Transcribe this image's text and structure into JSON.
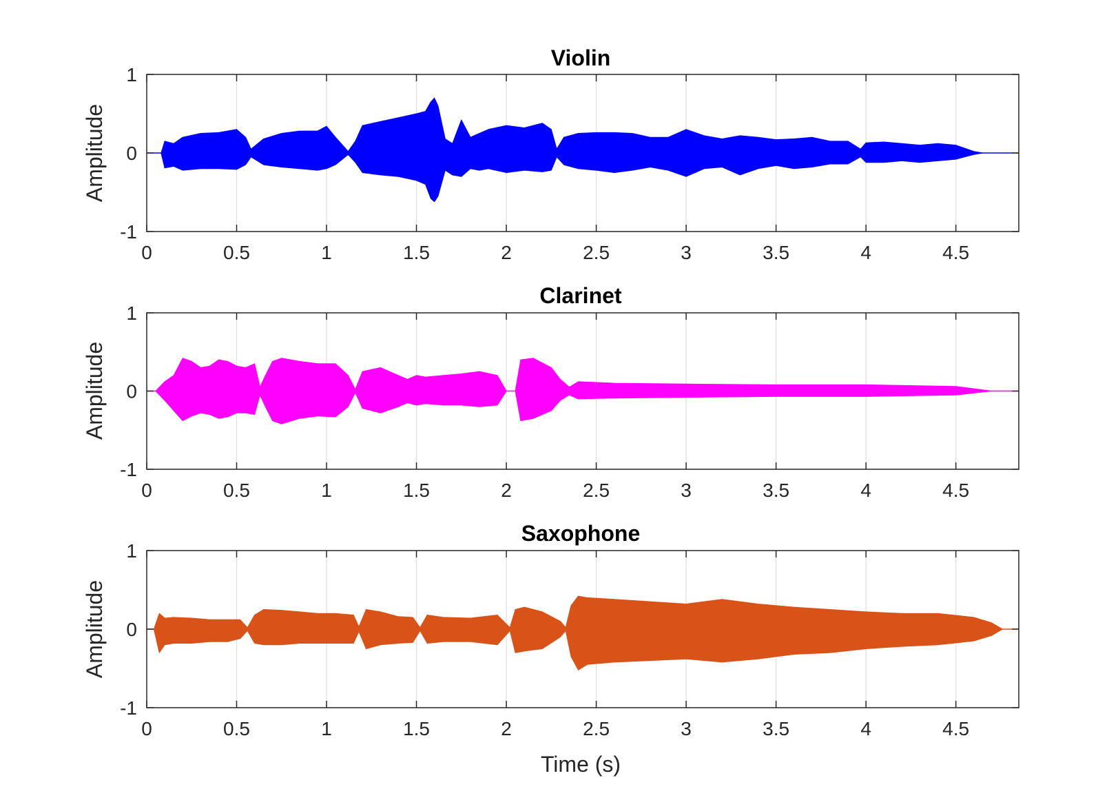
{
  "chart_data": [
    {
      "type": "line",
      "title": "Violin",
      "ylabel": "Amplitude",
      "xlabel": "",
      "color": "#0000ff",
      "xlim": [
        0,
        4.85
      ],
      "ylim": [
        -1,
        1
      ],
      "yticks": [
        "-1",
        "0",
        "1"
      ],
      "xticks": [
        "0",
        "0.5",
        "1",
        "1.5",
        "2",
        "2.5",
        "3",
        "3.5",
        "4",
        "4.5"
      ],
      "grid": "vertical",
      "envelope": {
        "x": [
          0.0,
          0.08,
          0.1,
          0.15,
          0.2,
          0.3,
          0.4,
          0.5,
          0.55,
          0.58,
          0.65,
          0.75,
          0.85,
          0.95,
          1.0,
          1.05,
          1.12,
          1.16,
          1.2,
          1.3,
          1.4,
          1.5,
          1.55,
          1.58,
          1.6,
          1.62,
          1.66,
          1.7,
          1.75,
          1.8,
          1.85,
          1.9,
          2.0,
          2.1,
          2.2,
          2.25,
          2.28,
          2.32,
          2.4,
          2.5,
          2.6,
          2.7,
          2.8,
          2.9,
          3.0,
          3.1,
          3.2,
          3.3,
          3.4,
          3.5,
          3.6,
          3.7,
          3.8,
          3.9,
          3.97,
          4.0,
          4.1,
          4.2,
          4.3,
          4.4,
          4.5,
          4.6,
          4.65,
          4.85
        ],
        "upper": [
          0.0,
          0.0,
          0.15,
          0.12,
          0.2,
          0.25,
          0.26,
          0.3,
          0.2,
          0.05,
          0.18,
          0.25,
          0.28,
          0.28,
          0.34,
          0.2,
          0.02,
          0.15,
          0.35,
          0.4,
          0.45,
          0.5,
          0.53,
          0.65,
          0.7,
          0.6,
          0.18,
          0.12,
          0.42,
          0.2,
          0.25,
          0.3,
          0.35,
          0.32,
          0.38,
          0.3,
          0.05,
          0.2,
          0.25,
          0.26,
          0.26,
          0.25,
          0.2,
          0.2,
          0.3,
          0.22,
          0.18,
          0.22,
          0.2,
          0.17,
          0.18,
          0.2,
          0.15,
          0.15,
          0.05,
          0.13,
          0.14,
          0.12,
          0.1,
          0.12,
          0.1,
          0.02,
          0.0,
          0.0
        ],
        "lower": [
          0.0,
          0.0,
          -0.19,
          -0.17,
          -0.22,
          -0.2,
          -0.2,
          -0.21,
          -0.15,
          -0.05,
          -0.15,
          -0.18,
          -0.2,
          -0.22,
          -0.2,
          -0.15,
          -0.02,
          -0.12,
          -0.25,
          -0.28,
          -0.3,
          -0.35,
          -0.4,
          -0.58,
          -0.62,
          -0.55,
          -0.22,
          -0.28,
          -0.3,
          -0.2,
          -0.22,
          -0.2,
          -0.25,
          -0.22,
          -0.24,
          -0.22,
          -0.05,
          -0.15,
          -0.2,
          -0.22,
          -0.25,
          -0.22,
          -0.18,
          -0.22,
          -0.3,
          -0.2,
          -0.18,
          -0.28,
          -0.2,
          -0.16,
          -0.2,
          -0.18,
          -0.14,
          -0.14,
          -0.05,
          -0.12,
          -0.12,
          -0.1,
          -0.12,
          -0.1,
          -0.08,
          -0.02,
          0.0,
          0.0
        ]
      }
    },
    {
      "type": "line",
      "title": "Clarinet",
      "ylabel": "Amplitude",
      "xlabel": "",
      "color": "#ff00ff",
      "xlim": [
        0,
        4.85
      ],
      "ylim": [
        -1,
        1
      ],
      "yticks": [
        "-1",
        "0",
        "1"
      ],
      "xticks": [
        "0",
        "0.5",
        "1",
        "1.5",
        "2",
        "2.5",
        "3",
        "3.5",
        "4",
        "4.5"
      ],
      "grid": "vertical",
      "envelope": {
        "x": [
          0.0,
          0.05,
          0.1,
          0.15,
          0.2,
          0.25,
          0.3,
          0.35,
          0.4,
          0.45,
          0.5,
          0.55,
          0.6,
          0.63,
          0.66,
          0.7,
          0.75,
          0.85,
          0.95,
          1.05,
          1.12,
          1.16,
          1.2,
          1.3,
          1.4,
          1.45,
          1.5,
          1.55,
          1.65,
          1.75,
          1.85,
          1.95,
          2.0,
          2.05,
          2.08,
          2.15,
          2.25,
          2.3,
          2.35,
          2.4,
          2.6,
          3.0,
          3.5,
          4.0,
          4.5,
          4.7,
          4.85
        ],
        "upper": [
          0.0,
          0.0,
          0.12,
          0.2,
          0.42,
          0.38,
          0.3,
          0.32,
          0.4,
          0.38,
          0.32,
          0.3,
          0.35,
          0.05,
          0.2,
          0.38,
          0.42,
          0.38,
          0.35,
          0.35,
          0.2,
          0.02,
          0.25,
          0.3,
          0.2,
          0.15,
          0.2,
          0.18,
          0.2,
          0.22,
          0.25,
          0.2,
          0.0,
          0.0,
          0.4,
          0.42,
          0.3,
          0.15,
          0.05,
          0.12,
          0.1,
          0.09,
          0.08,
          0.08,
          0.06,
          0.0,
          0.0
        ],
        "lower": [
          0.0,
          0.0,
          -0.12,
          -0.25,
          -0.38,
          -0.32,
          -0.28,
          -0.3,
          -0.35,
          -0.33,
          -0.28,
          -0.28,
          -0.3,
          -0.05,
          -0.2,
          -0.38,
          -0.42,
          -0.35,
          -0.32,
          -0.33,
          -0.2,
          -0.02,
          -0.22,
          -0.28,
          -0.2,
          -0.15,
          -0.18,
          -0.16,
          -0.18,
          -0.18,
          -0.2,
          -0.18,
          0.0,
          0.0,
          -0.38,
          -0.35,
          -0.25,
          -0.12,
          -0.05,
          -0.1,
          -0.09,
          -0.08,
          -0.07,
          -0.07,
          -0.05,
          0.0,
          0.0
        ]
      }
    },
    {
      "type": "line",
      "title": "Saxophone",
      "ylabel": "Amplitude",
      "xlabel": "Time (s)",
      "color": "#d95319",
      "xlim": [
        0,
        4.85
      ],
      "ylim": [
        -1,
        1
      ],
      "yticks": [
        "-1",
        "0",
        "1"
      ],
      "xticks": [
        "0",
        "0.5",
        "1",
        "1.5",
        "2",
        "2.5",
        "3",
        "3.5",
        "4",
        "4.5"
      ],
      "grid": "vertical",
      "envelope": {
        "x": [
          0.0,
          0.04,
          0.07,
          0.1,
          0.15,
          0.25,
          0.35,
          0.45,
          0.52,
          0.56,
          0.6,
          0.65,
          0.75,
          0.85,
          0.95,
          1.05,
          1.15,
          1.18,
          1.22,
          1.3,
          1.4,
          1.48,
          1.52,
          1.56,
          1.65,
          1.8,
          1.95,
          2.02,
          2.05,
          2.1,
          2.2,
          2.3,
          2.33,
          2.36,
          2.4,
          2.45,
          2.6,
          2.8,
          3.0,
          3.2,
          3.4,
          3.6,
          3.8,
          4.0,
          4.2,
          4.4,
          4.6,
          4.7,
          4.76,
          4.85
        ],
        "upper": [
          0.0,
          0.0,
          0.2,
          0.14,
          0.15,
          0.14,
          0.12,
          0.12,
          0.12,
          0.02,
          0.18,
          0.25,
          0.24,
          0.22,
          0.2,
          0.2,
          0.18,
          0.03,
          0.25,
          0.22,
          0.16,
          0.15,
          0.02,
          0.18,
          0.15,
          0.14,
          0.18,
          0.02,
          0.25,
          0.28,
          0.22,
          0.1,
          0.02,
          0.3,
          0.42,
          0.4,
          0.38,
          0.35,
          0.32,
          0.38,
          0.32,
          0.28,
          0.25,
          0.22,
          0.2,
          0.2,
          0.15,
          0.08,
          0.0,
          0.0
        ],
        "lower": [
          0.0,
          0.0,
          -0.3,
          -0.2,
          -0.18,
          -0.18,
          -0.16,
          -0.16,
          -0.12,
          -0.02,
          -0.18,
          -0.2,
          -0.2,
          -0.18,
          -0.18,
          -0.18,
          -0.18,
          -0.03,
          -0.25,
          -0.2,
          -0.18,
          -0.17,
          -0.02,
          -0.18,
          -0.16,
          -0.16,
          -0.2,
          -0.02,
          -0.3,
          -0.28,
          -0.25,
          -0.1,
          -0.02,
          -0.35,
          -0.52,
          -0.45,
          -0.42,
          -0.4,
          -0.38,
          -0.42,
          -0.38,
          -0.32,
          -0.3,
          -0.25,
          -0.22,
          -0.2,
          -0.15,
          -0.08,
          0.0,
          0.0
        ]
      }
    }
  ]
}
